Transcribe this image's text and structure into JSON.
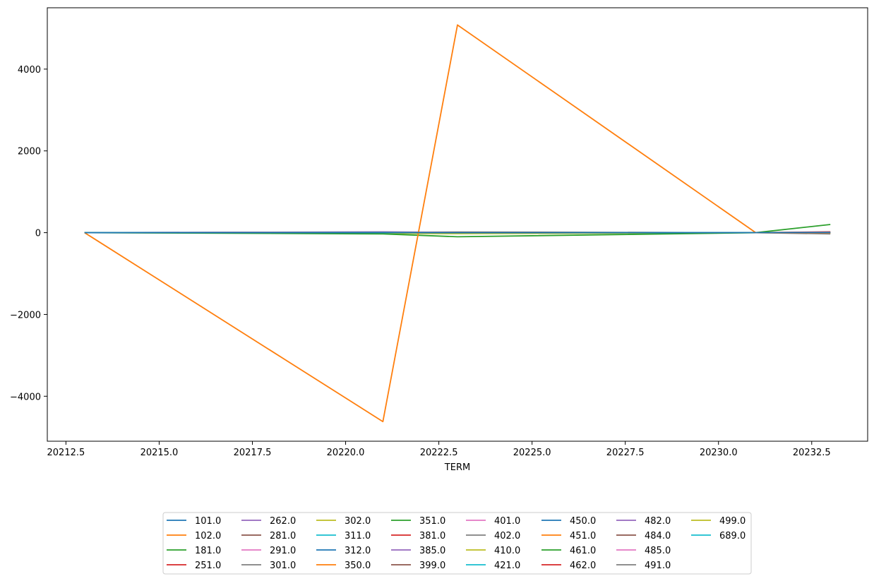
{
  "chart_data": {
    "type": "line",
    "title": "",
    "xlabel": "TERM",
    "ylabel": "",
    "xlim": [
      20212.0,
      20234.0
    ],
    "ylim": [
      -5100,
      5500
    ],
    "xticks": [
      20212.5,
      20215.0,
      20217.5,
      20220.0,
      20222.5,
      20225.0,
      20227.5,
      20230.0,
      20232.5
    ],
    "xtick_labels": [
      "20212.5",
      "20215.0",
      "20217.5",
      "20220.0",
      "20222.5",
      "20225.0",
      "20227.5",
      "20230.0",
      "20232.5"
    ],
    "yticks": [
      -4000,
      -2000,
      0,
      2000,
      4000
    ],
    "ytick_labels": [
      "−4000",
      "−2000",
      "0",
      "2000",
      "4000"
    ],
    "grid": false,
    "legend_position": "bottom-center, below plot",
    "legend_columns": 8,
    "x": [
      20213,
      20221,
      20223,
      20231,
      20233
    ],
    "series": [
      {
        "name": "101.0",
        "color": "#1f77b4",
        "values": [
          0,
          3,
          2,
          1,
          2
        ]
      },
      {
        "name": "102.0",
        "color": "#ff7f0e",
        "values": [
          0,
          -4620,
          5080,
          0,
          -10
        ]
      },
      {
        "name": "181.0",
        "color": "#2ca02c",
        "values": [
          0,
          -30,
          -100,
          0,
          200
        ]
      },
      {
        "name": "251.0",
        "color": "#d62728",
        "values": [
          0,
          5,
          2,
          1,
          20
        ]
      },
      {
        "name": "262.0",
        "color": "#9467bd",
        "values": [
          0,
          20,
          5,
          0,
          10
        ]
      },
      {
        "name": "281.0",
        "color": "#8c564b",
        "values": [
          0,
          10,
          15,
          0,
          5
        ]
      },
      {
        "name": "291.0",
        "color": "#e377c2",
        "values": [
          0,
          15,
          3,
          0,
          -5
        ]
      },
      {
        "name": "301.0",
        "color": "#7f7f7f",
        "values": [
          0,
          8,
          2,
          0,
          -30
        ]
      },
      {
        "name": "302.0",
        "color": "#bcbd22",
        "values": [
          0,
          -15,
          -25,
          0,
          3
        ]
      },
      {
        "name": "311.0",
        "color": "#17becf",
        "values": [
          0,
          5,
          1,
          0,
          2
        ]
      },
      {
        "name": "312.0",
        "color": "#1f77b4",
        "values": [
          0,
          2,
          3,
          0,
          1
        ]
      },
      {
        "name": "350.0",
        "color": "#ff7f0e",
        "values": [
          0,
          1,
          2,
          0,
          1
        ]
      },
      {
        "name": "351.0",
        "color": "#2ca02c",
        "values": [
          0,
          2,
          1,
          0,
          0
        ]
      },
      {
        "name": "381.0",
        "color": "#d62728",
        "values": [
          0,
          3,
          2,
          0,
          1
        ]
      },
      {
        "name": "385.0",
        "color": "#9467bd",
        "values": [
          0,
          1,
          0,
          0,
          2
        ]
      },
      {
        "name": "399.0",
        "color": "#8c564b",
        "values": [
          0,
          2,
          1,
          0,
          1
        ]
      },
      {
        "name": "401.0",
        "color": "#e377c2",
        "values": [
          0,
          1,
          1,
          0,
          0
        ]
      },
      {
        "name": "402.0",
        "color": "#7f7f7f",
        "values": [
          0,
          0,
          1,
          0,
          1
        ]
      },
      {
        "name": "410.0",
        "color": "#bcbd22",
        "values": [
          0,
          1,
          0,
          0,
          0
        ]
      },
      {
        "name": "421.0",
        "color": "#17becf",
        "values": [
          0,
          0,
          0,
          0,
          1
        ]
      },
      {
        "name": "450.0",
        "color": "#1f77b4",
        "values": [
          0,
          1,
          1,
          0,
          0
        ]
      },
      {
        "name": "451.0",
        "color": "#ff7f0e",
        "values": [
          0,
          0,
          1,
          0,
          0
        ]
      },
      {
        "name": "461.0",
        "color": "#2ca02c",
        "values": [
          0,
          1,
          0,
          0,
          0
        ]
      },
      {
        "name": "462.0",
        "color": "#d62728",
        "values": [
          0,
          0,
          0,
          0,
          1
        ]
      },
      {
        "name": "482.0",
        "color": "#9467bd",
        "values": [
          0,
          1,
          0,
          0,
          0
        ]
      },
      {
        "name": "484.0",
        "color": "#8c564b",
        "values": [
          0,
          0,
          1,
          0,
          0
        ]
      },
      {
        "name": "485.0",
        "color": "#e377c2",
        "values": [
          0,
          1,
          0,
          0,
          1
        ]
      },
      {
        "name": "491.0",
        "color": "#7f7f7f",
        "values": [
          0,
          0,
          0,
          0,
          0
        ]
      },
      {
        "name": "499.0",
        "color": "#bcbd22",
        "values": [
          0,
          0,
          1,
          0,
          0
        ]
      },
      {
        "name": "689.0",
        "color": "#17becf",
        "values": [
          0,
          1,
          0,
          0,
          0
        ]
      }
    ]
  }
}
